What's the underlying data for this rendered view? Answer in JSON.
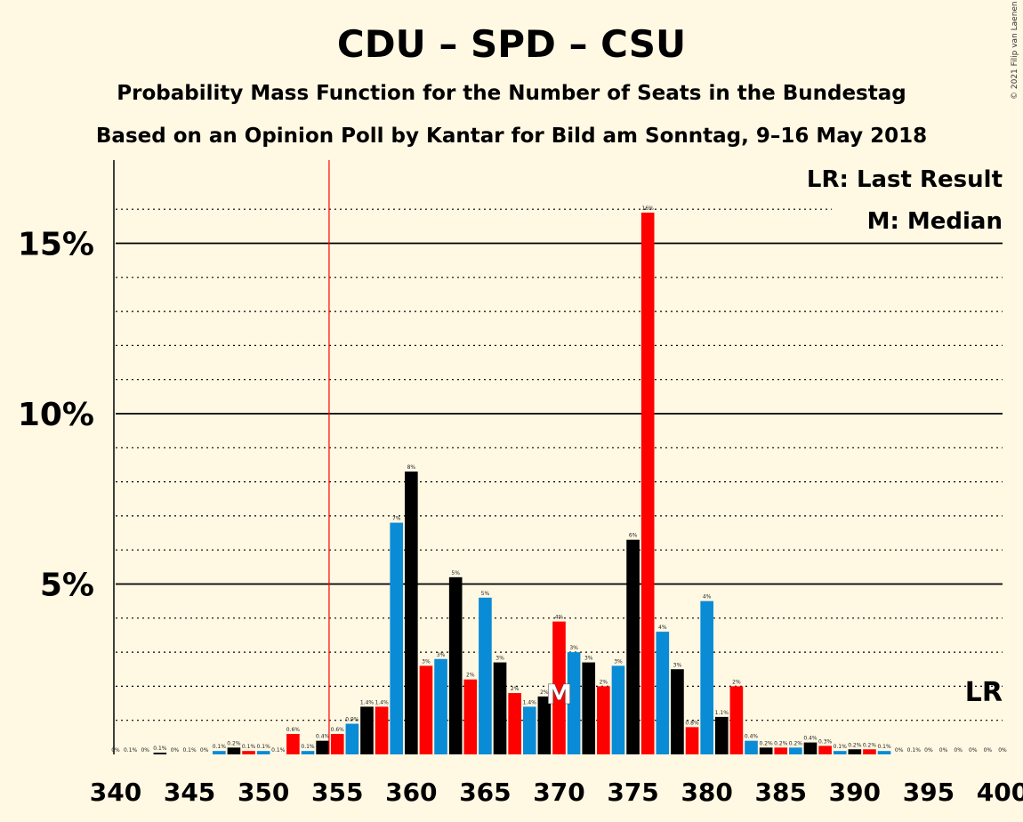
{
  "title": "CDU – SPD – CSU",
  "subtitle1": "Probability Mass Function for the Number of Seats in the Bundestag",
  "subtitle2": "Based on an Opinion Poll by Kantar for Bild am Sonntag, 9–16 May 2018",
  "copyright": "© 2021 Filip van Laenen",
  "legend": {
    "lr": "LR: Last Result",
    "median": "M: Median"
  },
  "lr_marker": "LR",
  "median_marker": "M",
  "colors": {
    "black": "#000000",
    "red": "#ff0000",
    "blue": "#0a8bd6",
    "background": "#fff8e3"
  },
  "chart_data": {
    "type": "bar",
    "xlim": [
      340,
      400
    ],
    "ylim": [
      0,
      17
    ],
    "yticks": [
      {
        "value": 5,
        "label": "5%"
      },
      {
        "value": 10,
        "label": "10%"
      },
      {
        "value": 15,
        "label": "15%"
      }
    ],
    "xticks": [
      340,
      345,
      350,
      355,
      360,
      365,
      370,
      375,
      380,
      385,
      390,
      395,
      400
    ],
    "majority_line": 355,
    "median_seat": 370,
    "last_result_seat": 399,
    "bars": [
      {
        "seat": 340,
        "value": 0.0,
        "label": "0%",
        "color": "black"
      },
      {
        "seat": 341,
        "value": 0.0,
        "label": "0.1%",
        "color": "red"
      },
      {
        "seat": 342,
        "value": 0.0,
        "label": "0%",
        "color": "blue"
      },
      {
        "seat": 343,
        "value": 0.05,
        "label": "0.1%",
        "color": "black"
      },
      {
        "seat": 344,
        "value": 0.0,
        "label": "0%",
        "color": "red"
      },
      {
        "seat": 345,
        "value": 0.0,
        "label": "0.1%",
        "color": "blue"
      },
      {
        "seat": 346,
        "value": 0.0,
        "label": "0%",
        "color": "black"
      },
      {
        "seat": 347,
        "value": 0.1,
        "label": "0.1%",
        "color": "blue"
      },
      {
        "seat": 348,
        "value": 0.2,
        "label": "0.2%",
        "color": "black"
      },
      {
        "seat": 349,
        "value": 0.1,
        "label": "0.1%",
        "color": "red"
      },
      {
        "seat": 350,
        "value": 0.1,
        "label": "0.1%",
        "color": "blue"
      },
      {
        "seat": 351,
        "value": 0.0,
        "label": "0.1%",
        "color": "black"
      },
      {
        "seat": 352,
        "value": 0.6,
        "label": "0.6%",
        "color": "red"
      },
      {
        "seat": 353,
        "value": 0.1,
        "label": "0.1%",
        "color": "blue"
      },
      {
        "seat": 354,
        "value": 0.4,
        "label": "0.4%",
        "color": "black"
      },
      {
        "seat": 355,
        "value": 0.6,
        "label": "0.6%",
        "color": "red"
      },
      {
        "seat": 356,
        "value": 0.9,
        "label": "0.9%",
        "color": "blue"
      },
      {
        "seat": 357,
        "value": 1.4,
        "label": "1.4%",
        "color": "black"
      },
      {
        "seat": 358,
        "value": 1.4,
        "label": "1.4%",
        "color": "red"
      },
      {
        "seat": 359,
        "value": 6.8,
        "label": "7%",
        "color": "blue"
      },
      {
        "seat": 360,
        "value": 8.3,
        "label": "8%",
        "color": "black"
      },
      {
        "seat": 361,
        "value": 2.6,
        "label": "3%",
        "color": "red"
      },
      {
        "seat": 362,
        "value": 2.8,
        "label": "3%",
        "color": "blue"
      },
      {
        "seat": 363,
        "value": 5.2,
        "label": "5%",
        "color": "black"
      },
      {
        "seat": 364,
        "value": 2.2,
        "label": "2%",
        "color": "red"
      },
      {
        "seat": 365,
        "value": 4.6,
        "label": "5%",
        "color": "blue"
      },
      {
        "seat": 366,
        "value": 2.7,
        "label": "3%",
        "color": "black"
      },
      {
        "seat": 367,
        "value": 1.8,
        "label": "2%",
        "color": "red"
      },
      {
        "seat": 368,
        "value": 1.4,
        "label": "1.4%",
        "color": "blue"
      },
      {
        "seat": 369,
        "value": 1.7,
        "label": "2%",
        "color": "black"
      },
      {
        "seat": 370,
        "value": 3.9,
        "label": "4%",
        "color": "red"
      },
      {
        "seat": 371,
        "value": 3.0,
        "label": "3%",
        "color": "blue"
      },
      {
        "seat": 372,
        "value": 2.7,
        "label": "3%",
        "color": "black"
      },
      {
        "seat": 373,
        "value": 2.0,
        "label": "2%",
        "color": "red"
      },
      {
        "seat": 374,
        "value": 2.6,
        "label": "3%",
        "color": "blue"
      },
      {
        "seat": 375,
        "value": 6.3,
        "label": "6%",
        "color": "black"
      },
      {
        "seat": 376,
        "value": 15.9,
        "label": "16%",
        "color": "red"
      },
      {
        "seat": 377,
        "value": 3.6,
        "label": "4%",
        "color": "blue"
      },
      {
        "seat": 378,
        "value": 2.5,
        "label": "3%",
        "color": "black"
      },
      {
        "seat": 379,
        "value": 0.8,
        "label": "0.8%",
        "color": "red"
      },
      {
        "seat": 380,
        "value": 4.5,
        "label": "4%",
        "color": "blue"
      },
      {
        "seat": 381,
        "value": 1.1,
        "label": "1.1%",
        "color": "black"
      },
      {
        "seat": 382,
        "value": 2.0,
        "label": "2%",
        "color": "red"
      },
      {
        "seat": 383,
        "value": 0.4,
        "label": "0.4%",
        "color": "blue"
      },
      {
        "seat": 384,
        "value": 0.2,
        "label": "0.2%",
        "color": "black"
      },
      {
        "seat": 385,
        "value": 0.2,
        "label": "0.2%",
        "color": "red"
      },
      {
        "seat": 386,
        "value": 0.2,
        "label": "0.2%",
        "color": "blue"
      },
      {
        "seat": 387,
        "value": 0.35,
        "label": "0.4%",
        "color": "black"
      },
      {
        "seat": 388,
        "value": 0.25,
        "label": "0.3%",
        "color": "red"
      },
      {
        "seat": 389,
        "value": 0.1,
        "label": "0.1%",
        "color": "blue"
      },
      {
        "seat": 390,
        "value": 0.15,
        "label": "0.2%",
        "color": "black"
      },
      {
        "seat": 391,
        "value": 0.15,
        "label": "0.2%",
        "color": "red"
      },
      {
        "seat": 392,
        "value": 0.1,
        "label": "0.1%",
        "color": "blue"
      },
      {
        "seat": 393,
        "value": 0.0,
        "label": "0%",
        "color": "black"
      },
      {
        "seat": 394,
        "value": 0.0,
        "label": "0.1%",
        "color": "red"
      },
      {
        "seat": 395,
        "value": 0.0,
        "label": "0%",
        "color": "blue"
      },
      {
        "seat": 396,
        "value": 0.0,
        "label": "0%",
        "color": "black"
      },
      {
        "seat": 397,
        "value": 0.0,
        "label": "0%",
        "color": "red"
      },
      {
        "seat": 398,
        "value": 0.0,
        "label": "0%",
        "color": "blue"
      },
      {
        "seat": 399,
        "value": 0.0,
        "label": "0%",
        "color": "black"
      },
      {
        "seat": 400,
        "value": 0.0,
        "label": "0%",
        "color": "red"
      }
    ]
  }
}
